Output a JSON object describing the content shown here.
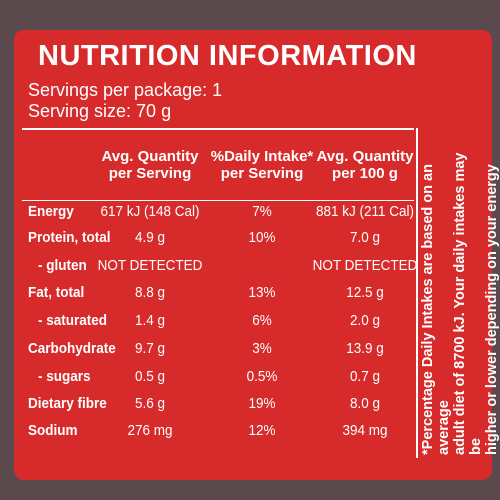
{
  "header": {
    "title": "NUTRITION INFORMATION",
    "servings": "Servings per package: 1",
    "serving_size": "Serving size: 70 g"
  },
  "table": {
    "columns": [
      [
        "Avg. Quantity",
        "per Serving"
      ],
      [
        "%Daily Intake*",
        "per Serving"
      ],
      [
        "Avg. Quantity",
        "per 100 g"
      ]
    ],
    "rows": [
      {
        "label": "Energy",
        "per_serving": "617 kJ (148 Cal)",
        "daily_intake": "7%",
        "per_100g": "881 kJ (211 Cal)"
      },
      {
        "label": "Protein, total",
        "per_serving": "4.9 g",
        "daily_intake": "10%",
        "per_100g": "7.0 g"
      },
      {
        "label": "- gluten",
        "per_serving": "NOT DETECTED",
        "per_100g": "NOT DETECTED",
        "sub": true
      },
      {
        "label": "Fat, total",
        "per_serving": "8.8 g",
        "daily_intake": "13%",
        "per_100g": "12.5 g"
      },
      {
        "label": "- saturated",
        "per_serving": "1.4 g",
        "daily_intake": "6%",
        "per_100g": "2.0 g",
        "sub": true
      },
      {
        "label": "Carbohydrate",
        "per_serving": "9.7 g",
        "daily_intake": "3%",
        "per_100g": "13.9 g"
      },
      {
        "label": "- sugars",
        "per_serving": "0.5 g",
        "daily_intake": "0.5%",
        "per_100g": "0.7 g",
        "sub": true
      },
      {
        "label": "Dietary fibre",
        "per_serving": "5.6 g",
        "daily_intake": "19%",
        "per_100g": "8.0 g"
      },
      {
        "label": "Sodium",
        "per_serving": "276 mg",
        "daily_intake": "12%",
        "per_100g": "394 mg"
      }
    ]
  },
  "footnote": [
    "*Percentage Daily Intakes are based on an average",
    "adult diet of 8700 kJ. Your daily intakes may be",
    "higher or lower depending on your energy needs."
  ]
}
